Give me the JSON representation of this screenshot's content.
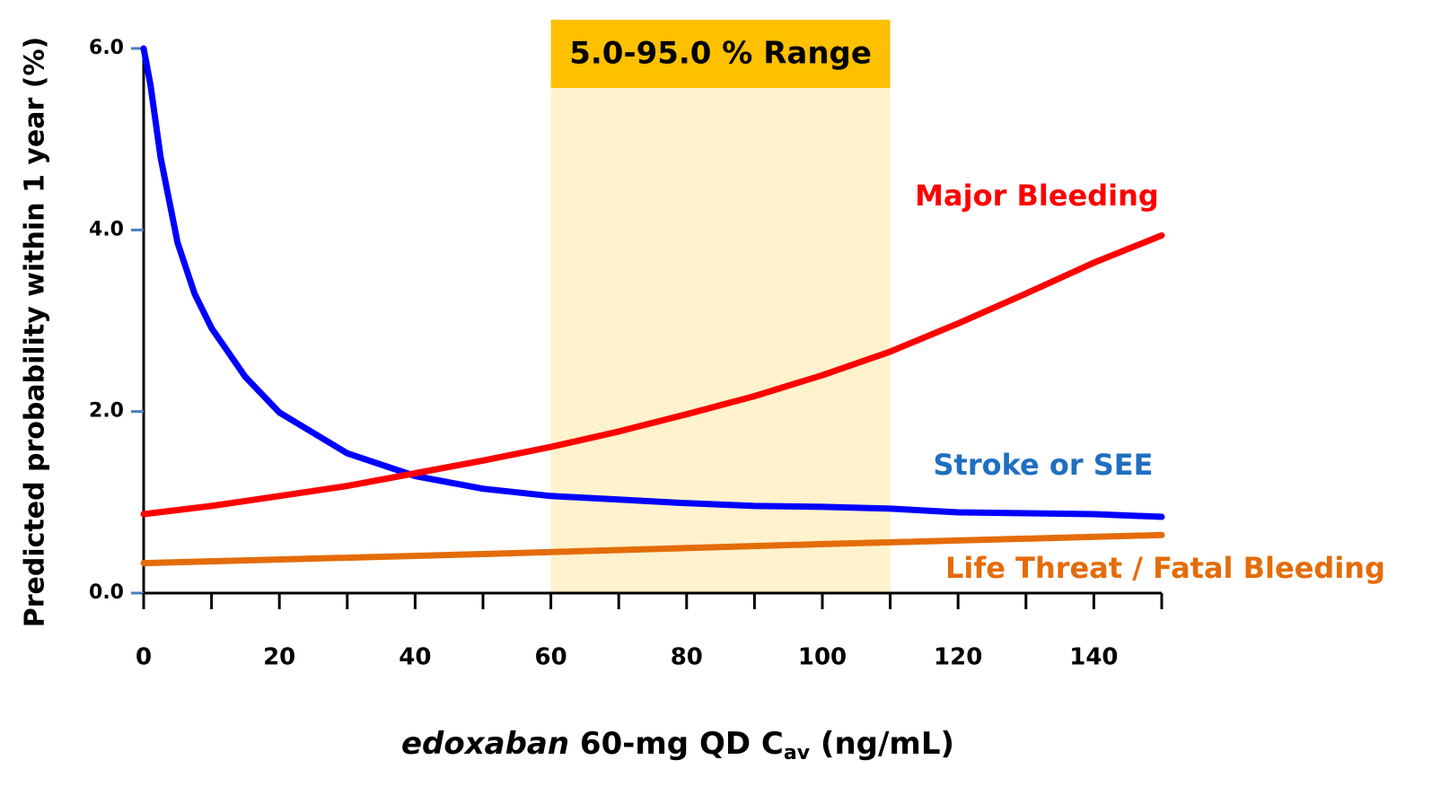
{
  "chart_data": {
    "type": "line",
    "ylabel": "Predicted probability within 1 year (%)",
    "xlabel_parts": [
      "edoxaban",
      " 60-mg QD C",
      "av",
      " (ng/mL)"
    ],
    "xlim": [
      0,
      150
    ],
    "ylim": [
      0,
      6
    ],
    "xticks": [
      0,
      20,
      40,
      60,
      80,
      100,
      120,
      140
    ],
    "xminor_ticks": [
      10,
      30,
      50,
      70,
      90,
      110,
      130,
      150
    ],
    "yticks": [
      {
        "value": 0,
        "label": "0.0"
      },
      {
        "value": 2,
        "label": "2.0"
      },
      {
        "value": 4,
        "label": "4.0"
      },
      {
        "value": 6,
        "label": "6.0"
      }
    ],
    "range": {
      "x": [
        60,
        110
      ],
      "label": "5.0-95.0 % Range",
      "color": "#fff2cc",
      "label_color": "#ffc000"
    },
    "series": [
      {
        "name": "Stroke or SEE",
        "color": "#0000ff",
        "label_color": "#1f6fc0",
        "x": [
          0,
          1,
          2.5,
          5,
          7.5,
          10,
          15,
          20,
          30,
          40,
          50,
          60,
          70,
          80,
          90,
          100,
          110,
          120,
          130,
          140,
          150
        ],
        "values": [
          6.0,
          5.6,
          4.8,
          3.86,
          3.3,
          2.92,
          2.38,
          1.99,
          1.54,
          1.29,
          1.15,
          1.07,
          1.03,
          0.99,
          0.96,
          0.95,
          0.93,
          0.89,
          0.88,
          0.87,
          0.84
        ]
      },
      {
        "name": "Major Bleeding",
        "color": "#ff0000",
        "label_color": "#ff0000",
        "x": [
          0,
          10,
          20,
          30,
          40,
          50,
          60,
          70,
          80,
          90,
          100,
          110,
          120,
          130,
          140,
          150
        ],
        "values": [
          0.87,
          0.96,
          1.07,
          1.18,
          1.32,
          1.46,
          1.61,
          1.78,
          1.97,
          2.17,
          2.4,
          2.66,
          2.97,
          3.3,
          3.64,
          3.94
        ]
      },
      {
        "name": "Life Threat / Fatal Bleeding",
        "color": "#e46c0a",
        "label_color": "#e46c0a",
        "x": [
          0,
          50,
          100,
          150
        ],
        "values": [
          0.33,
          0.43,
          0.54,
          0.64
        ]
      }
    ]
  }
}
